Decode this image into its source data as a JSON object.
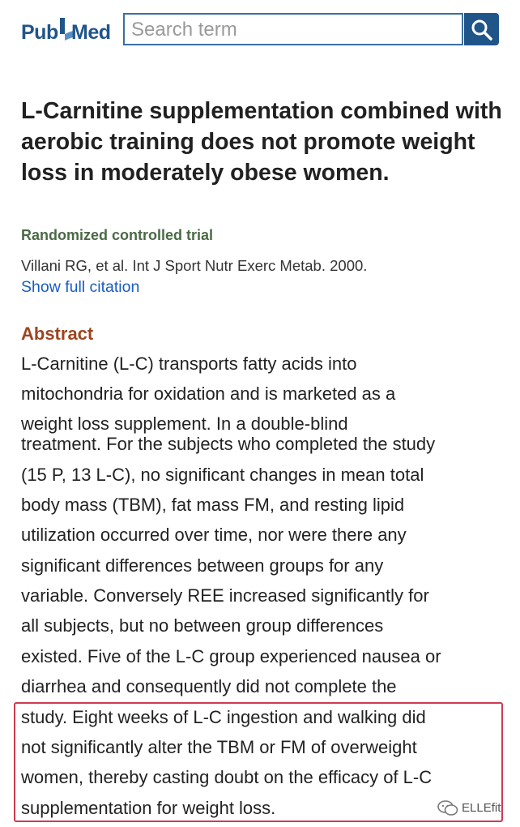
{
  "header": {
    "logo": {
      "part1": "Pub",
      "part2": "Med"
    },
    "search": {
      "placeholder": "Search term",
      "value": ""
    },
    "search_button_icon": "search-icon"
  },
  "article": {
    "title": "L-Carnitine supplementation combined with aerobic training does not promote weight loss in moderately obese women.",
    "publication_type": "Randomized controlled trial",
    "citation": "Villani RG, et al. Int J Sport Nutr Exerc Metab. 2000.",
    "show_full_citation": "Show full citation"
  },
  "abstract": {
    "heading": "Abstract",
    "lines": [
      "L-Carnitine (L-C) transports fatty acids into",
      "mitochondria for oxidation and is marketed as a",
      "weight loss supplement. In a double-blind",
      "treatment. For the subjects who completed the study",
      "(15 P, 13 L-C), no significant changes in mean total",
      "body mass (TBM), fat mass FM, and resting lipid",
      "utilization occurred over time, nor were there any",
      "significant differences between groups for any",
      "variable. Conversely REE increased significantly for",
      "all subjects, but no between group differences",
      "existed. Five of the L-C group experienced nausea or",
      "diarrhea and consequently did not complete the",
      "study. Eight weeks of L-C ingestion and walking did",
      "not significantly alter the TBM or FM of overweight",
      "women, thereby casting doubt on the efficacy of L-C",
      "supplementation for weight loss."
    ]
  },
  "watermark": {
    "icon": "wechat-icon",
    "text": "ELLEfit"
  },
  "colors": {
    "brand": "#20558a",
    "link": "#1a5cc4",
    "pub_type": "#4a6a45",
    "abstract_heading": "#9c4520",
    "highlight_border": "#cc3b53"
  }
}
